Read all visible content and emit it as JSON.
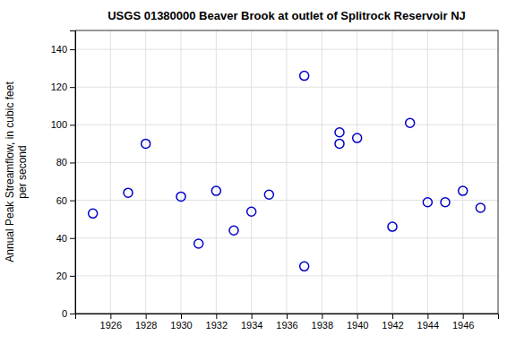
{
  "chart_data": {
    "type": "scatter",
    "title": "USGS 01380000 Beaver Brook at outlet of Splitrock Reservoir NJ",
    "ylabel": "Annual Peak Streamflow, in cubic feet\nper second",
    "x": [
      1925,
      1927,
      1928,
      1930,
      1931,
      1932,
      1933,
      1934,
      1935,
      1937,
      1937,
      1939,
      1939,
      1940,
      1942,
      1943,
      1944,
      1945,
      1946,
      1947
    ],
    "values": [
      53,
      64,
      90,
      62,
      37,
      65,
      44,
      54,
      63,
      126,
      25,
      96,
      90,
      93,
      46,
      101,
      59,
      59,
      65,
      56
    ],
    "xlim": [
      1924.0,
      1948.0
    ],
    "ylim": [
      0,
      150
    ],
    "xticks": [
      1926,
      1928,
      1930,
      1932,
      1934,
      1936,
      1938,
      1940,
      1942,
      1944,
      1946
    ],
    "yticks": [
      0,
      20,
      40,
      60,
      80,
      100,
      120,
      140
    ],
    "color": "#0000cc",
    "marker": "circle",
    "grid": true
  }
}
